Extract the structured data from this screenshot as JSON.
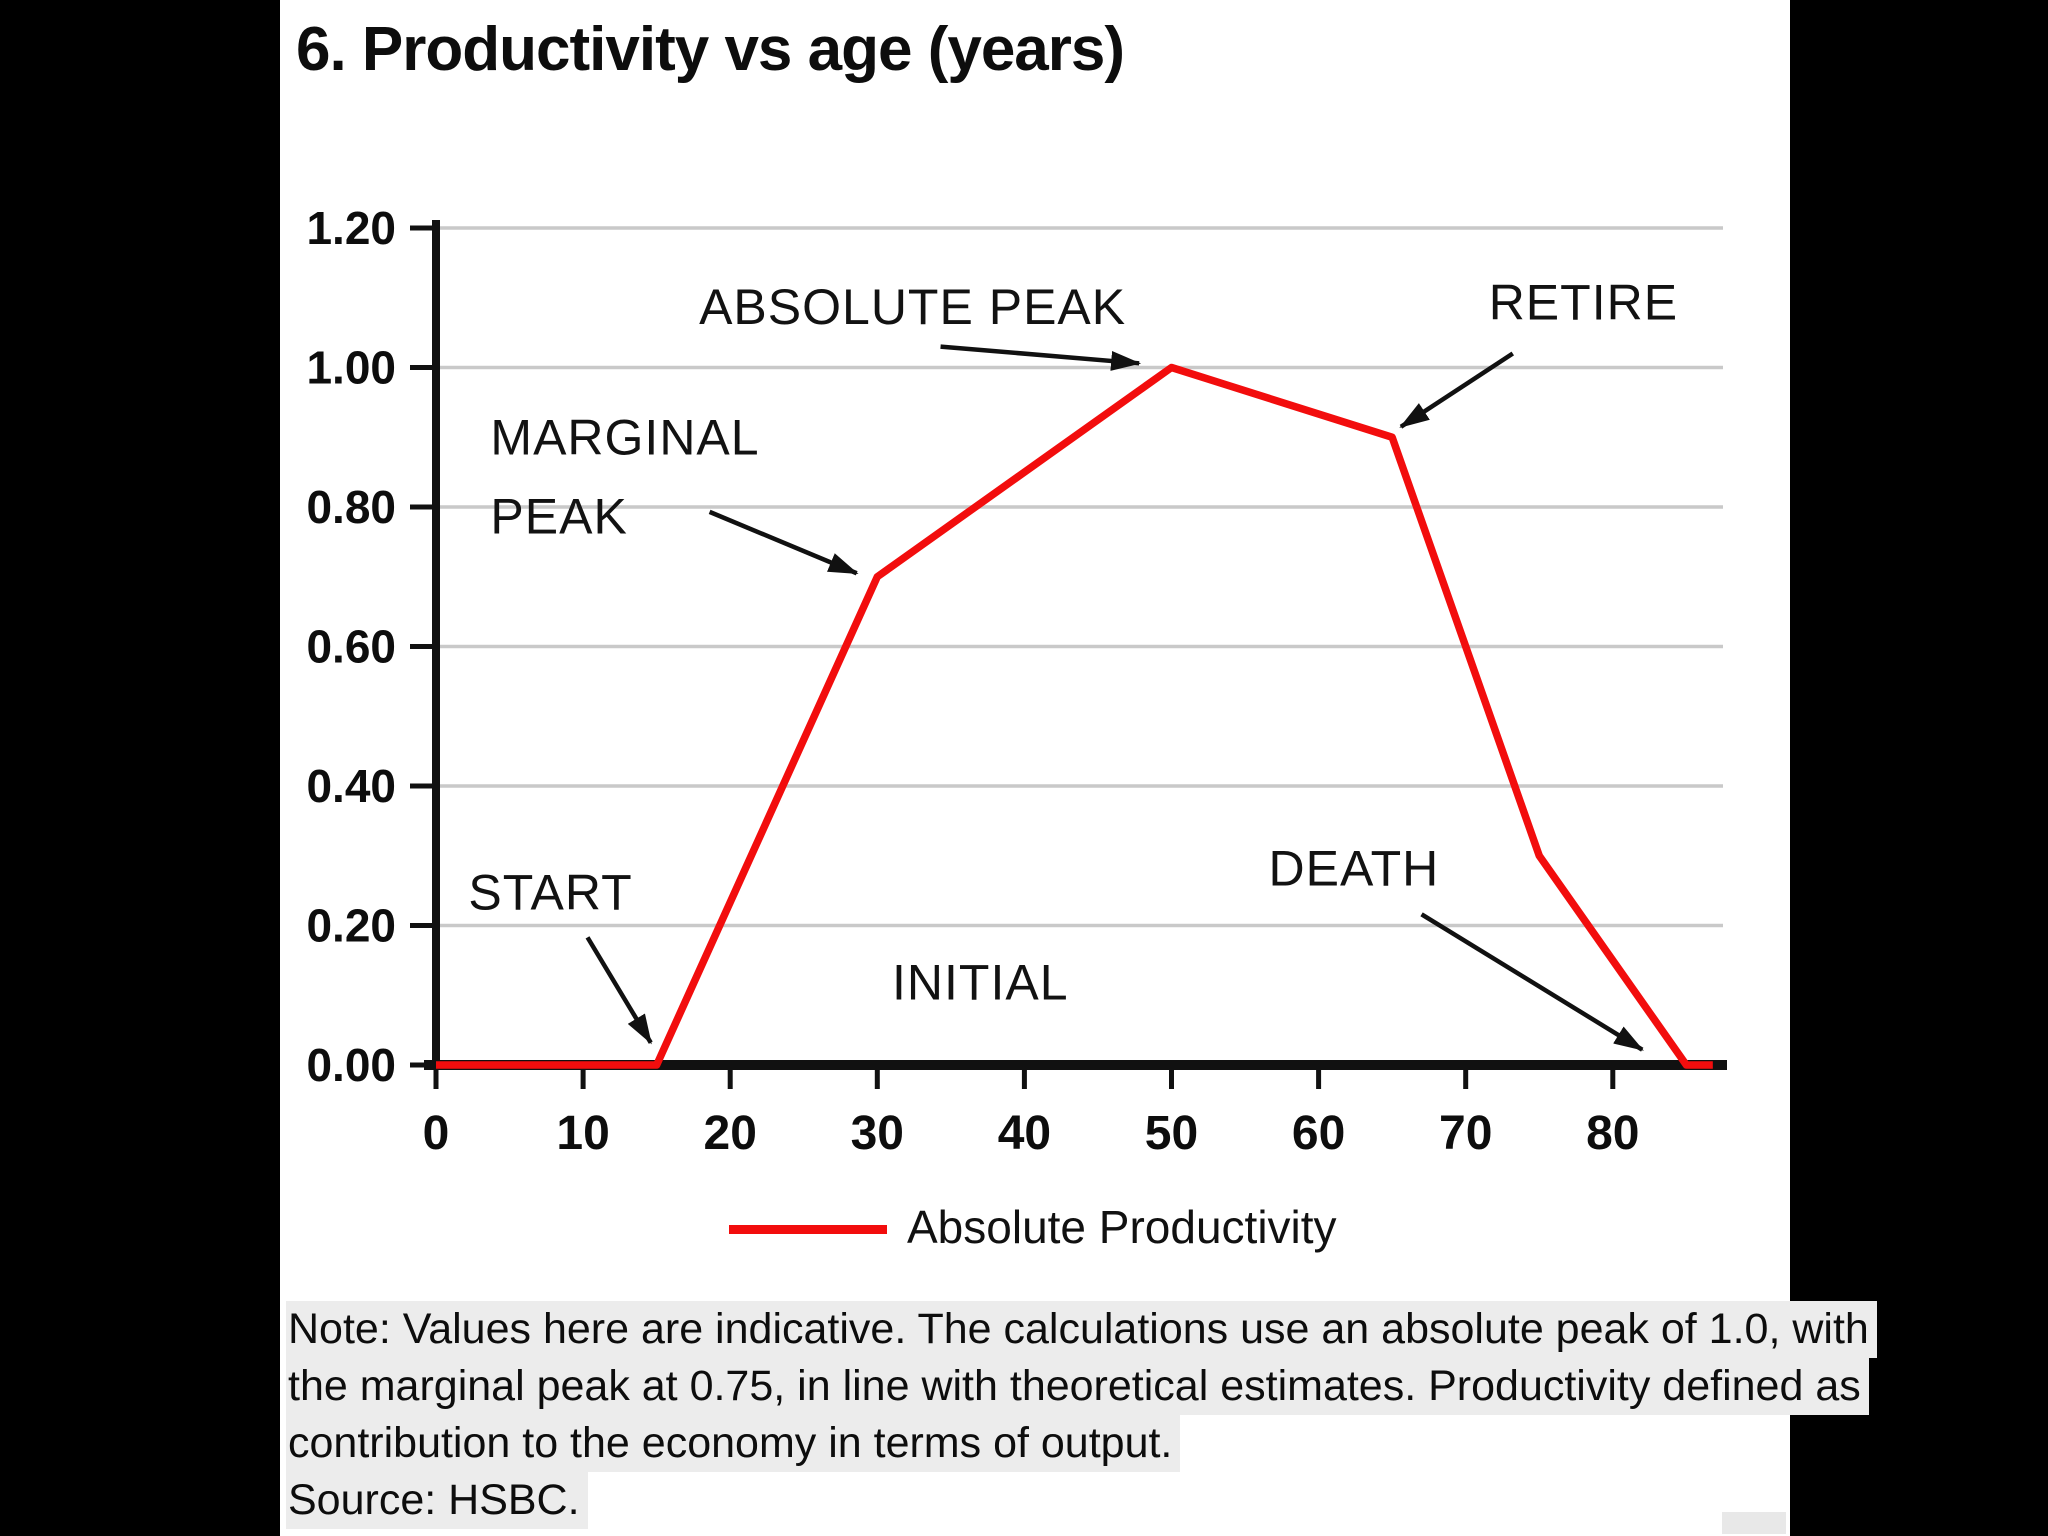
{
  "chart_data": {
    "type": "line",
    "title": "6. Productivity vs age (years)",
    "xlabel": "",
    "ylabel": "",
    "xlim": [
      0,
      88
    ],
    "ylim": [
      0,
      1.2
    ],
    "grid": "horizontal",
    "x_axis": {
      "tick_values": [
        0,
        10,
        20,
        30,
        40,
        50,
        60,
        70,
        80
      ],
      "tick_labels": [
        "0",
        "10",
        "20",
        "30",
        "40",
        "50",
        "60",
        "70",
        "80"
      ]
    },
    "y_axis": {
      "tick_values": [
        0,
        0.2,
        0.4,
        0.6,
        0.8,
        1.0,
        1.2
      ],
      "tick_labels": [
        "0.00",
        "0.20",
        "0.40",
        "0.60",
        "0.80",
        "1.00",
        "1.20"
      ]
    },
    "series": [
      {
        "name": "Absolute Productivity",
        "color": "#F20D0D",
        "points": [
          [
            0,
            0
          ],
          [
            15,
            0
          ],
          [
            30,
            0.7
          ],
          [
            50,
            1.0
          ],
          [
            65,
            0.9
          ],
          [
            75,
            0.3
          ],
          [
            85,
            0
          ],
          [
            86.8,
            0
          ]
        ]
      }
    ],
    "annotations": [
      {
        "id": "marginal-peak",
        "lines": [
          "MARGINAL",
          "PEAK"
        ],
        "anchor": "start",
        "label_at": [
          3.7,
          0.9
        ],
        "arrow": {
          "from": [
            18.6,
            0.793
          ],
          "to": [
            28.6,
            0.705
          ]
        }
      },
      {
        "id": "absolute-peak",
        "lines": [
          "ABSOLUTE PEAK"
        ],
        "anchor": "middle",
        "label_at": [
          32.4,
          1.087
        ],
        "arrow": {
          "from": [
            34.3,
            1.03
          ],
          "to": [
            47.8,
            1.006
          ]
        }
      },
      {
        "id": "retire",
        "lines": [
          "RETIRE"
        ],
        "anchor": "middle",
        "label_at": [
          78.0,
          1.093
        ],
        "arrow": {
          "from": [
            73.2,
            1.02
          ],
          "to": [
            65.6,
            0.915
          ]
        }
      },
      {
        "id": "start",
        "lines": [
          "START"
        ],
        "anchor": "start",
        "label_at": [
          2.2,
          0.247
        ],
        "arrow": {
          "from": [
            10.3,
            0.183
          ],
          "to": [
            14.6,
            0.032
          ]
        }
      },
      {
        "id": "initial",
        "lines": [
          "INITIAL"
        ],
        "anchor": "middle",
        "label_at": [
          37.0,
          0.118
        ],
        "arrow": null
      },
      {
        "id": "death",
        "lines": [
          "DEATH"
        ],
        "anchor": "middle",
        "label_at": [
          62.4,
          0.282
        ],
        "arrow": {
          "from": [
            67.0,
            0.216
          ],
          "to": [
            82.0,
            0.022
          ]
        }
      }
    ],
    "legend": {
      "position": "bottom-center",
      "label": "Absolute Productivity",
      "swatch_color": "#F20D0D"
    }
  },
  "note": {
    "lines": [
      "Note: Values here are indicative. The calculations use an absolute peak of 1.0, with",
      "the marginal peak at 0.75, in line with theoretical estimates. Productivity defined as",
      "contribution to the economy in terms of output."
    ],
    "source": "Source: HSBC."
  },
  "colors": {
    "line_red": "#F20D0D",
    "gridline_gray": "#C9C9C9",
    "axis_black": "#111111",
    "note_highlight": "#ECECEC",
    "background": "#FFFFFF",
    "side_bars": "#000000"
  }
}
